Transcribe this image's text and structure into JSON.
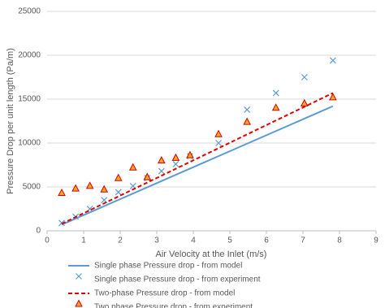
{
  "chart_data": {
    "type": "scatter",
    "xlabel": "Air Velocity at the Inlet (m/s)",
    "ylabel": "Pressure Drop per unit length (Pa/m)",
    "xlim": [
      0,
      9
    ],
    "xticks": [
      0,
      1,
      2,
      3,
      4,
      5,
      6,
      7,
      8,
      9
    ],
    "ylim": [
      0,
      25000
    ],
    "yticks": [
      0,
      5000,
      10000,
      15000,
      20000,
      25000
    ],
    "grid": true,
    "legend": "bottom",
    "series": [
      {
        "name": "Single phase Pressure drop - from model",
        "style": "line",
        "color": "#5b9bd5",
        "x": [
          0.4,
          7.82
        ],
        "values": [
          700,
          14200
        ]
      },
      {
        "name": "Single phase Pressure drop - from experiment",
        "style": "x",
        "color": "#5b9bd5",
        "x": [
          0.4,
          0.78,
          1.17,
          1.56,
          1.95,
          2.35,
          2.74,
          3.13,
          3.52,
          3.91,
          4.69,
          5.47,
          6.26,
          7.04,
          7.82
        ],
        "values": [
          900,
          1600,
          2500,
          3500,
          4400,
          5100,
          6000,
          6800,
          7600,
          8500,
          10000,
          13800,
          15700,
          17500,
          19400
        ]
      },
      {
        "name": "Two-phase Pressure drop - from model",
        "style": "dashed",
        "color": "#e00000",
        "x": [
          0.4,
          7.82
        ],
        "values": [
          800,
          15700
        ]
      },
      {
        "name": "Two phase Pressure drop - from experiment",
        "style": "triangle",
        "color": "#f5a623",
        "edgecolor": "#d40000",
        "x": [
          0.4,
          0.78,
          1.17,
          1.56,
          1.95,
          2.35,
          2.74,
          3.13,
          3.52,
          3.91,
          4.69,
          5.47,
          6.26,
          7.04,
          7.82
        ],
        "values": [
          4300,
          4800,
          5100,
          4700,
          6000,
          7200,
          6100,
          8000,
          8300,
          8600,
          11000,
          12400,
          14000,
          14500,
          15200
        ]
      }
    ]
  }
}
